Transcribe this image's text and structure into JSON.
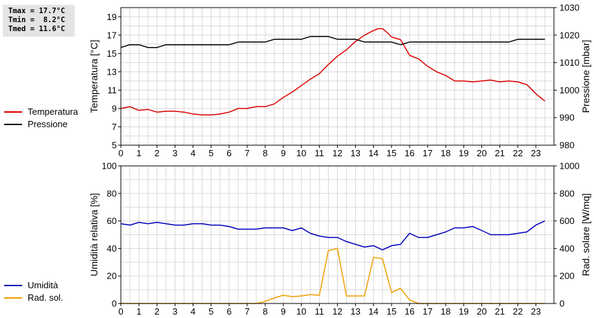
{
  "stats": {
    "tmax": "Tmax = 17.7°C",
    "tmin": "Tmin =  8.2°C",
    "tmed": "Tmed = 11.6°C"
  },
  "colors": {
    "temperature": "#dd0000",
    "pressure": "#000000",
    "humidity": "#0000bb",
    "radiation": "#f0a000",
    "grid": "#d8d8d8"
  },
  "chart_data": [
    {
      "type": "line",
      "xlim": [
        0,
        24
      ],
      "x_ticks": [
        "0",
        "1",
        "2",
        "3",
        "4",
        "5",
        "6",
        "7",
        "8",
        "9",
        "10",
        "11",
        "12",
        "13",
        "14",
        "15",
        "16",
        "17",
        "18",
        "19",
        "20",
        "21",
        "22",
        "23"
      ],
      "ylabel": "Temperatura [°C]",
      "ylim": [
        5,
        20
      ],
      "y_ticks": [
        "5",
        "7",
        "9",
        "11",
        "13",
        "15",
        "17",
        "19"
      ],
      "ylabel_right": "Pressione [mbar]",
      "ylim_right": [
        980,
        1030
      ],
      "y_ticks_right": [
        "980",
        "990",
        "1000",
        "1010",
        "1020",
        "1030"
      ],
      "grid": true,
      "legend_position": "left",
      "series": [
        {
          "name": "Temperatura",
          "axis": "left",
          "color": "#dd0000",
          "points": [
            [
              0,
              9.0
            ],
            [
              0.25,
              9.1
            ],
            [
              0.5,
              9.2
            ],
            [
              1,
              8.8
            ],
            [
              1.5,
              8.9
            ],
            [
              2,
              8.6
            ],
            [
              2.5,
              8.7
            ],
            [
              3,
              8.7
            ],
            [
              3.5,
              8.6
            ],
            [
              4,
              8.4
            ],
            [
              4.5,
              8.3
            ],
            [
              5,
              8.3
            ],
            [
              5.5,
              8.4
            ],
            [
              6,
              8.6
            ],
            [
              6.5,
              9.0
            ],
            [
              7,
              9.0
            ],
            [
              7.5,
              9.2
            ],
            [
              8,
              9.2
            ],
            [
              8.5,
              9.5
            ],
            [
              9,
              10.2
            ],
            [
              9.5,
              10.8
            ],
            [
              10,
              11.5
            ],
            [
              10.5,
              12.2
            ],
            [
              11,
              12.8
            ],
            [
              11.5,
              13.8
            ],
            [
              12,
              14.7
            ],
            [
              12.5,
              15.4
            ],
            [
              13,
              16.3
            ],
            [
              13.5,
              17.0
            ],
            [
              14,
              17.5
            ],
            [
              14.25,
              17.7
            ],
            [
              14.5,
              17.7
            ],
            [
              14.75,
              17.3
            ],
            [
              15,
              16.8
            ],
            [
              15.5,
              16.5
            ],
            [
              16,
              14.8
            ],
            [
              16.5,
              14.4
            ],
            [
              17,
              13.6
            ],
            [
              17.5,
              13.0
            ],
            [
              18,
              12.6
            ],
            [
              18.5,
              12.0
            ],
            [
              19,
              12.0
            ],
            [
              19.5,
              11.9
            ],
            [
              20,
              12.0
            ],
            [
              20.5,
              12.1
            ],
            [
              21,
              11.9
            ],
            [
              21.5,
              12.0
            ],
            [
              22,
              11.9
            ],
            [
              22.5,
              11.6
            ],
            [
              23,
              10.6
            ],
            [
              23.5,
              9.8
            ]
          ]
        },
        {
          "name": "Pressione",
          "axis": "right",
          "color": "#000000",
          "points": [
            [
              0,
              1015.5
            ],
            [
              0.5,
              1016.5
            ],
            [
              1,
              1016.5
            ],
            [
              1.5,
              1015.5
            ],
            [
              2,
              1015.5
            ],
            [
              2.5,
              1016.5
            ],
            [
              3,
              1016.5
            ],
            [
              6,
              1016.5
            ],
            [
              6.5,
              1017.5
            ],
            [
              8,
              1017.5
            ],
            [
              8.5,
              1018.5
            ],
            [
              10,
              1018.5
            ],
            [
              10.5,
              1019.5
            ],
            [
              11.5,
              1019.5
            ],
            [
              12,
              1018.5
            ],
            [
              13,
              1018.5
            ],
            [
              13.5,
              1017.5
            ],
            [
              15,
              1017.5
            ],
            [
              15.5,
              1016.5
            ],
            [
              16,
              1017.5
            ],
            [
              21.5,
              1017.5
            ],
            [
              22,
              1018.5
            ],
            [
              23.5,
              1018.5
            ]
          ]
        }
      ]
    },
    {
      "type": "line",
      "xlim": [
        0,
        24
      ],
      "x_ticks": [
        "0",
        "1",
        "2",
        "3",
        "4",
        "5",
        "6",
        "7",
        "8",
        "9",
        "10",
        "11",
        "12",
        "13",
        "14",
        "15",
        "16",
        "17",
        "18",
        "19",
        "20",
        "21",
        "22",
        "23"
      ],
      "ylabel": "Umidità relativa [%]",
      "ylim": [
        0,
        100
      ],
      "y_ticks": [
        "0",
        "20",
        "40",
        "60",
        "80",
        "100"
      ],
      "ylabel_right": "Rad. solare [W/mq]",
      "ylim_right": [
        0,
        1000
      ],
      "y_ticks_right": [
        "0",
        "200",
        "400",
        "600",
        "800",
        "1000"
      ],
      "grid": true,
      "legend_position": "left",
      "series": [
        {
          "name": "Umidità",
          "axis": "left",
          "color": "#0000bb",
          "points": [
            [
              0,
              58
            ],
            [
              0.5,
              57
            ],
            [
              1,
              59
            ],
            [
              1.5,
              58
            ],
            [
              2,
              59
            ],
            [
              2.5,
              58
            ],
            [
              3,
              57
            ],
            [
              3.5,
              57
            ],
            [
              4,
              58
            ],
            [
              4.5,
              58
            ],
            [
              5,
              57
            ],
            [
              5.5,
              57
            ],
            [
              6,
              56
            ],
            [
              6.5,
              54
            ],
            [
              7,
              54
            ],
            [
              7.5,
              54
            ],
            [
              8,
              55
            ],
            [
              8.5,
              55
            ],
            [
              9,
              55
            ],
            [
              9.5,
              53
            ],
            [
              10,
              55
            ],
            [
              10.5,
              51
            ],
            [
              11,
              49
            ],
            [
              11.5,
              48
            ],
            [
              12,
              48
            ],
            [
              12.5,
              45
            ],
            [
              13,
              43
            ],
            [
              13.5,
              41
            ],
            [
              14,
              42
            ],
            [
              14.5,
              39
            ],
            [
              15,
              42
            ],
            [
              15.5,
              43
            ],
            [
              16,
              51
            ],
            [
              16.5,
              48
            ],
            [
              17,
              48
            ],
            [
              17.5,
              50
            ],
            [
              18,
              52
            ],
            [
              18.5,
              55
            ],
            [
              19,
              55
            ],
            [
              19.5,
              56
            ],
            [
              20,
              53
            ],
            [
              20.5,
              50
            ],
            [
              21,
              50
            ],
            [
              21.5,
              50
            ],
            [
              22,
              51
            ],
            [
              22.5,
              52
            ],
            [
              23,
              57
            ],
            [
              23.5,
              60
            ]
          ]
        },
        {
          "name": "Rad. sol.",
          "axis": "right",
          "color": "#f0a000",
          "points": [
            [
              0,
              0
            ],
            [
              7.5,
              0
            ],
            [
              8,
              15
            ],
            [
              8.5,
              40
            ],
            [
              9,
              60
            ],
            [
              9.5,
              50
            ],
            [
              10,
              55
            ],
            [
              10.5,
              65
            ],
            [
              11,
              60
            ],
            [
              11.5,
              385
            ],
            [
              12,
              400
            ],
            [
              12.5,
              55
            ],
            [
              13,
              55
            ],
            [
              13.5,
              55
            ],
            [
              14,
              335
            ],
            [
              14.5,
              325
            ],
            [
              15,
              80
            ],
            [
              15.5,
              110
            ],
            [
              16,
              25
            ],
            [
              16.5,
              0
            ],
            [
              23.5,
              0
            ]
          ]
        }
      ]
    }
  ]
}
